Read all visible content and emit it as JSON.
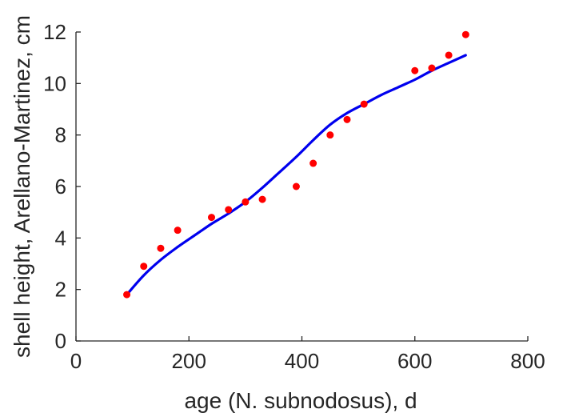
{
  "chart_data": {
    "type": "scatter",
    "xlabel": "age (N. subnodosus), d",
    "ylabel": "shell height, Arellano-Martinez, cm",
    "xlim": [
      0,
      800
    ],
    "ylim": [
      0,
      12
    ],
    "xticks": [
      0,
      200,
      400,
      600,
      800
    ],
    "yticks": [
      0,
      2,
      4,
      6,
      8,
      10,
      12
    ],
    "grid": false,
    "series": [
      {
        "kind": "points",
        "color": "#ff0000",
        "x": [
          90,
          120,
          150,
          180,
          240,
          270,
          300,
          330,
          390,
          420,
          450,
          480,
          510,
          600,
          630,
          660,
          690
        ],
        "y": [
          1.8,
          2.9,
          3.6,
          4.3,
          4.8,
          5.1,
          5.4,
          5.5,
          6.0,
          6.9,
          8.0,
          8.6,
          9.2,
          10.5,
          10.6,
          11.1,
          11.9
        ]
      },
      {
        "kind": "line",
        "color": "#0000ee",
        "x": [
          90,
          120,
          150,
          180,
          210,
          240,
          270,
          300,
          330,
          360,
          390,
          420,
          450,
          480,
          510,
          540,
          570,
          600,
          630,
          660,
          690
        ],
        "y": [
          1.8,
          2.55,
          3.15,
          3.65,
          4.1,
          4.55,
          4.95,
          5.4,
          5.95,
          6.55,
          7.15,
          7.8,
          8.4,
          8.85,
          9.2,
          9.55,
          9.85,
          10.15,
          10.5,
          10.8,
          11.1
        ]
      }
    ]
  }
}
